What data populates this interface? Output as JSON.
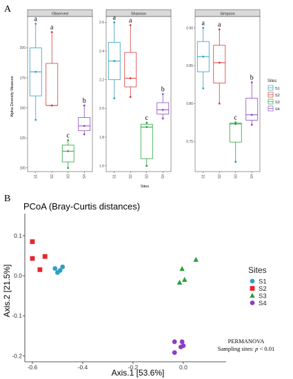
{
  "panel_labels": {
    "a": "A",
    "b": "B"
  },
  "chart_data": [
    {
      "type": "boxplot",
      "ylabel": "Alpha Diversity Measure",
      "xlabel": "Sites",
      "categories": [
        "S1",
        "S2",
        "S3",
        "S4"
      ],
      "legend": {
        "title": "Sites",
        "entries": [
          "S1",
          "S2",
          "S3",
          "S4"
        ],
        "placement": "right"
      },
      "colors": {
        "S1": "#2e9fc4",
        "S2": "#d63a3a",
        "S3": "#27a23a",
        "S4": "#8b49c2"
      },
      "facets": [
        {
          "title": "Observed",
          "ylim": [
            97,
            226
          ],
          "yticks": [
            100,
            125,
            150,
            175,
            200
          ],
          "tick_labels": [
            "100",
            "125",
            "150",
            "175",
            "200"
          ],
          "boxes": [
            {
              "site": "S1",
              "whisker_low": 140,
              "q1": 160,
              "median": 180,
              "q3": 200,
              "whisker_high": 220,
              "points": [
                140,
                180,
                220
              ],
              "letter": "a"
            },
            {
              "site": "S2",
              "whisker_low": 152,
              "q1": 152,
              "median": 152,
              "q3": 187,
              "whisker_high": 213,
              "points": [
                152,
                213
              ],
              "letter": "a"
            },
            {
              "site": "S3",
              "whisker_low": 100,
              "q1": 105,
              "median": 114,
              "q3": 119,
              "whisker_high": 123,
              "points": [
                100,
                114,
                123
              ],
              "letter": "c"
            },
            {
              "site": "S4",
              "whisker_low": 128,
              "q1": 131,
              "median": 135,
              "q3": 142,
              "whisker_high": 152,
              "points": [
                128,
                135,
                152
              ],
              "letter": "b"
            }
          ]
        },
        {
          "title": "Shannon",
          "ylim": [
            1.56,
            2.64
          ],
          "yticks": [
            1.6,
            1.8,
            2.0,
            2.2,
            2.4,
            2.6
          ],
          "tick_labels": [
            "1.6",
            "1.8",
            "2.0",
            "2.2",
            "2.4",
            "2.6"
          ],
          "boxes": [
            {
              "site": "S1",
              "whisker_low": 2.07,
              "q1": 2.2,
              "median": 2.33,
              "q3": 2.46,
              "whisker_high": 2.6,
              "points": [
                2.07,
                2.33,
                2.6
              ],
              "letter": "a"
            },
            {
              "site": "S2",
              "whisker_low": 2.08,
              "q1": 2.15,
              "median": 2.21,
              "q3": 2.39,
              "whisker_high": 2.58,
              "points": [
                2.08,
                2.21,
                2.58
              ],
              "letter": "a"
            },
            {
              "site": "S3",
              "whisker_low": 1.6,
              "q1": 1.65,
              "median": 1.87,
              "q3": 1.89,
              "whisker_high": 1.9,
              "points": [
                1.6,
                1.87,
                1.9
              ],
              "letter": "c"
            },
            {
              "site": "S4",
              "whisker_low": 1.93,
              "q1": 1.96,
              "median": 1.99,
              "q3": 2.04,
              "whisker_high": 2.1,
              "points": [
                1.93,
                1.99,
                2.1
              ],
              "letter": "b"
            }
          ]
        },
        {
          "title": "Simpson",
          "ylim": [
            0.71,
            0.915
          ],
          "yticks": [
            0.75,
            0.8,
            0.85,
            0.9
          ],
          "tick_labels": [
            "0.75",
            "0.80",
            "0.85",
            "0.90"
          ],
          "boxes": [
            {
              "site": "S1",
              "whisker_low": 0.82,
              "q1": 0.842,
              "median": 0.862,
              "q3": 0.882,
              "whisker_high": 0.9,
              "points": [
                0.82,
                0.862,
                0.9
              ],
              "letter": "a"
            },
            {
              "site": "S2",
              "whisker_low": 0.8,
              "q1": 0.827,
              "median": 0.854,
              "q3": 0.877,
              "whisker_high": 0.898,
              "points": [
                0.8,
                0.854,
                0.898
              ],
              "letter": "a"
            },
            {
              "site": "S3",
              "whisker_low": 0.723,
              "q1": 0.749,
              "median": 0.773,
              "q3": 0.774,
              "whisker_high": 0.775,
              "points": [
                0.723,
                0.773,
                0.775
              ],
              "letter": "c"
            },
            {
              "site": "S4",
              "whisker_low": 0.772,
              "q1": 0.778,
              "median": 0.785,
              "q3": 0.807,
              "whisker_high": 0.828,
              "points": [
                0.772,
                0.785,
                0.828
              ],
              "letter": "b"
            }
          ]
        }
      ]
    },
    {
      "type": "scatter",
      "title": "PCoA (Bray-Curtis distances)",
      "xlabel": "Axis.1   [53.6%]",
      "ylabel": "Axis.2   [21.5%]",
      "xlim": [
        -0.63,
        0.17
      ],
      "ylim": [
        -0.215,
        0.155
      ],
      "xticks": [
        -0.6,
        -0.4,
        -0.2,
        0.0
      ],
      "xtick_labels": [
        "-0.6",
        "-0.4",
        "-0.2",
        "0.0"
      ],
      "yticks": [
        -0.2,
        -0.1,
        0.0,
        0.1
      ],
      "ytick_labels": [
        "-0.2",
        "-0.1",
        "0.0",
        "0.1"
      ],
      "legend": {
        "title": "Sites",
        "entries": [
          "S1",
          "S2",
          "S3",
          "S4"
        ],
        "placement": "right"
      },
      "series": [
        {
          "name": "S1",
          "color": "#2e9fc4",
          "shape": "circle",
          "points": [
            [
              -0.51,
              0.018
            ],
            [
              -0.48,
              0.022
            ],
            [
              -0.5,
              0.008
            ],
            [
              -0.49,
              0.013
            ]
          ]
        },
        {
          "name": "S2",
          "color": "#e8262b",
          "shape": "square",
          "points": [
            [
              -0.6,
              0.085
            ],
            [
              -0.6,
              0.043
            ],
            [
              -0.55,
              0.048
            ],
            [
              -0.57,
              0.015
            ]
          ]
        },
        {
          "name": "S3",
          "color": "#27a23a",
          "shape": "triangle",
          "points": [
            [
              -0.005,
              0.017
            ],
            [
              0.05,
              0.04
            ],
            [
              -0.015,
              -0.017
            ],
            [
              0.005,
              -0.01
            ]
          ]
        },
        {
          "name": "S4",
          "color": "#8b3fc4",
          "shape": "circle",
          "points": [
            [
              -0.035,
              -0.165
            ],
            [
              -0.005,
              -0.165
            ],
            [
              0.0,
              -0.175
            ],
            [
              -0.035,
              -0.192
            ],
            [
              -0.01,
              -0.178
            ]
          ]
        }
      ],
      "annotation": {
        "line1": "PERMANOVA",
        "line2_prefix": "Sampling sites: ",
        "line2_italic": "p",
        "line2_suffix": " < 0.01"
      }
    }
  ]
}
